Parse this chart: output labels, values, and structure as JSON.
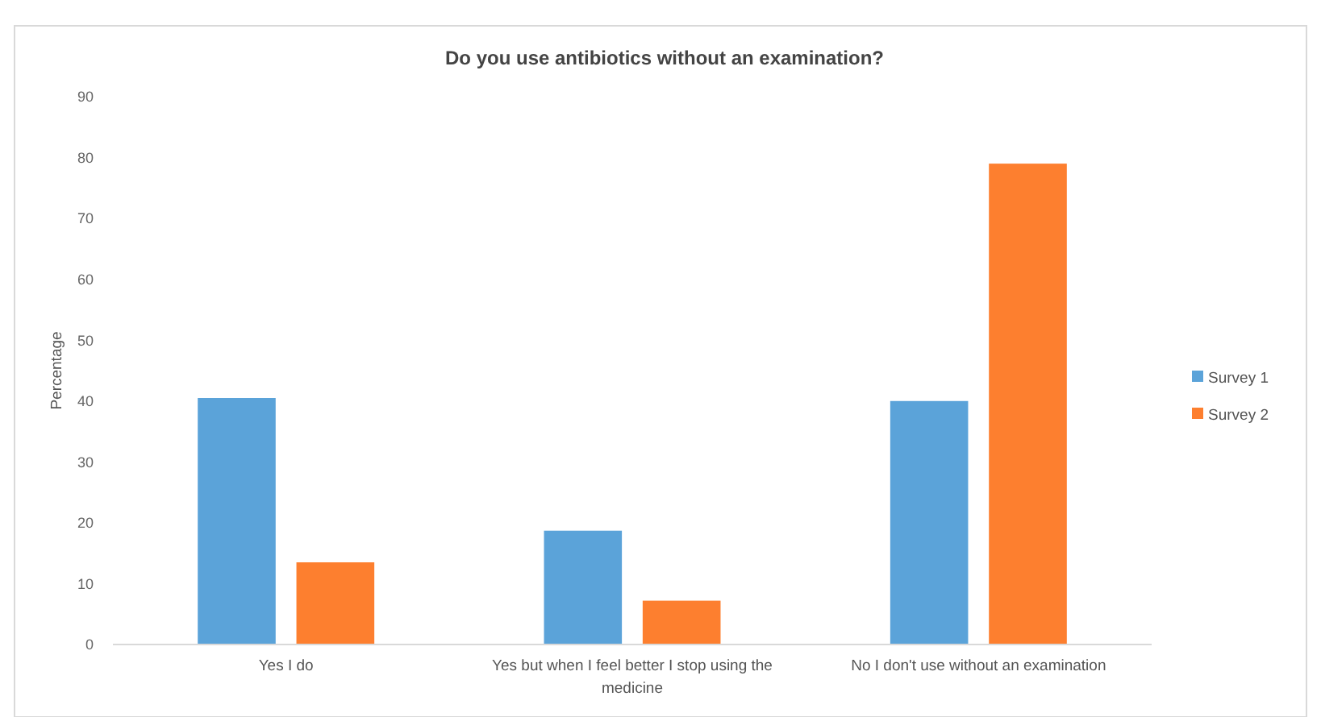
{
  "chart_data": {
    "type": "bar",
    "title": "Do you use antibiotics without an examination?",
    "ylabel": "Percentage",
    "categories": [
      "Yes I do",
      "Yes but when I feel better I stop using the medicine",
      "No I don't use without an examination"
    ],
    "series": [
      {
        "name": "Survey 1",
        "color": "#5ba3d9",
        "values": [
          40.5,
          18.7,
          40
        ]
      },
      {
        "name": "Survey 2",
        "color": "#fd7f2f",
        "values": [
          13.5,
          7.2,
          79
        ]
      }
    ],
    "ylim": [
      0,
      90
    ],
    "yticks": [
      0,
      10,
      20,
      30,
      40,
      50,
      60,
      70,
      80,
      90
    ],
    "grid": false,
    "legend": "right"
  }
}
